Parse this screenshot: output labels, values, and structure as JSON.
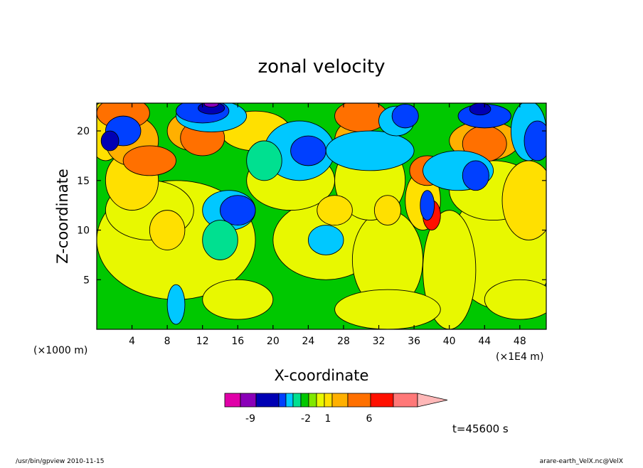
{
  "chart_data": {
    "type": "heatmap",
    "title": "zonal velocity",
    "xlabel": "X-coordinate",
    "ylabel": "Z-coordinate",
    "x_unit_left": "(×1000 m)",
    "x_unit_right": "(×1E4 m)",
    "x_ticks": [
      4,
      8,
      12,
      16,
      20,
      24,
      28,
      32,
      36,
      40,
      44,
      48
    ],
    "y_ticks": [
      5,
      10,
      15,
      20
    ],
    "xlim": [
      0,
      51
    ],
    "ylim": [
      0,
      22.8
    ],
    "grid": false,
    "colorbar": {
      "levels": [
        -9,
        -2,
        1,
        6
      ],
      "colors": [
        "#e000a8",
        "#8a00b8",
        "#0000b4",
        "#0040ff",
        "#00c8ff",
        "#00e090",
        "#00c800",
        "#80e800",
        "#e8f800",
        "#ffe000",
        "#ffb000",
        "#ff7000",
        "#ff1000",
        "#ff7878",
        "#ffb8b8"
      ]
    },
    "time_label": "t=45600 s"
  },
  "footer": {
    "left": "/usr/bin/gpview  2010-11-15",
    "right": "arare-earth_VelX.nc@VelX"
  }
}
